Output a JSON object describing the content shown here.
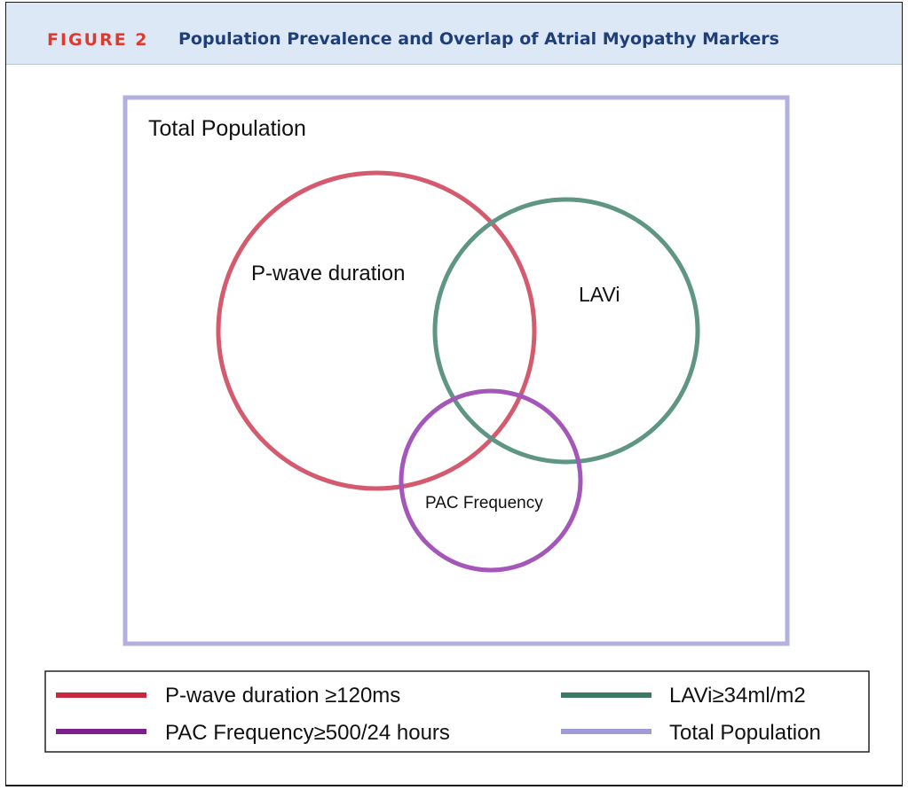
{
  "header": {
    "figure_label": "FIGURE 2",
    "title": "Population Prevalence and Overlap of Atrial Myopathy Markers"
  },
  "diagram": {
    "total_label": "Total Population",
    "sets": [
      {
        "id": "pwave",
        "label": "P-wave duration",
        "color": "#d45a6e"
      },
      {
        "id": "lavi",
        "label": "LAVi",
        "color": "#5f9585"
      },
      {
        "id": "pac",
        "label": "PAC Frequency",
        "color": "#a457b8"
      }
    ],
    "total_color": "#b4b0e0"
  },
  "legend": {
    "items": [
      {
        "label": "P-wave duration ≥120ms",
        "color": "#c8283c"
      },
      {
        "label": "LAVi≥34ml/m2",
        "color": "#3d7a66"
      },
      {
        "label": "PAC Frequency≥500/24 hours",
        "color": "#7a1f8c"
      },
      {
        "label": "Total Population",
        "color": "#9f9bd9"
      }
    ]
  }
}
